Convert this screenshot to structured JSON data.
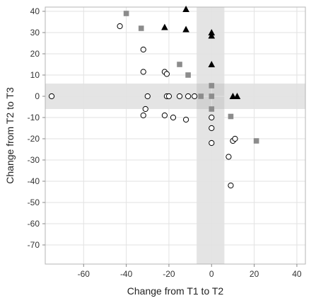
{
  "chart_data": {
    "type": "scatter",
    "title": "",
    "xlabel": "Change from T1 to T2",
    "ylabel": "Change from T2 to T3",
    "xlim": [
      -78,
      44
    ],
    "ylim": [
      -79,
      42
    ],
    "x_ticks": [
      -60,
      -40,
      -20,
      0,
      20,
      40
    ],
    "y_ticks": [
      40,
      30,
      20,
      10,
      0,
      -10,
      -20,
      -30,
      -40,
      -50,
      -60,
      -70
    ],
    "grid": true,
    "legend": "none",
    "bands": {
      "x_band": [
        -7,
        6
      ],
      "y_band": [
        -6,
        6
      ],
      "color": "#e4e4e4",
      "overlap_color": "#d2d2d2"
    },
    "series": [
      {
        "marker": "circle",
        "color": "#000000",
        "fill": "#ffffff",
        "points": [
          {
            "x": -43,
            "y": 33
          },
          {
            "x": -32,
            "y": 22
          },
          {
            "x": -32,
            "y": 11.5
          },
          {
            "x": -22,
            "y": 11.5
          },
          {
            "x": -21,
            "y": 10.5
          },
          {
            "x": -75,
            "y": 0
          },
          {
            "x": -30,
            "y": 0
          },
          {
            "x": -21,
            "y": 0
          },
          {
            "x": -20,
            "y": 0
          },
          {
            "x": -15,
            "y": 0
          },
          {
            "x": -11,
            "y": 0
          },
          {
            "x": -8,
            "y": 0
          },
          {
            "x": -31,
            "y": -6
          },
          {
            "x": -32,
            "y": -9
          },
          {
            "x": -22,
            "y": -9
          },
          {
            "x": -18,
            "y": -10
          },
          {
            "x": -12,
            "y": -11
          },
          {
            "x": 0,
            "y": -10
          },
          {
            "x": 0,
            "y": -15
          },
          {
            "x": 0,
            "y": -22
          },
          {
            "x": 10,
            "y": -21
          },
          {
            "x": 11,
            "y": -20
          },
          {
            "x": 8,
            "y": -28.5
          },
          {
            "x": 9,
            "y": -42
          }
        ]
      },
      {
        "marker": "square",
        "color": "#8c8c8c",
        "points": [
          {
            "x": -40,
            "y": 39
          },
          {
            "x": -33,
            "y": 32
          },
          {
            "x": -15,
            "y": 15
          },
          {
            "x": -11,
            "y": 10
          },
          {
            "x": -5,
            "y": 0
          },
          {
            "x": 0,
            "y": 5
          },
          {
            "x": 0,
            "y": 0
          },
          {
            "x": 0,
            "y": -6
          },
          {
            "x": 9,
            "y": -9.5
          },
          {
            "x": 21,
            "y": -21
          }
        ]
      },
      {
        "marker": "triangle",
        "color": "#000000",
        "points": [
          {
            "x": -12,
            "y": 41
          },
          {
            "x": -22,
            "y": 32.5
          },
          {
            "x": -12,
            "y": 31.5
          },
          {
            "x": 0,
            "y": 30
          },
          {
            "x": 0,
            "y": 28.5
          },
          {
            "x": 0,
            "y": 15
          },
          {
            "x": 10,
            "y": 0
          },
          {
            "x": 12,
            "y": 0
          }
        ]
      }
    ]
  }
}
